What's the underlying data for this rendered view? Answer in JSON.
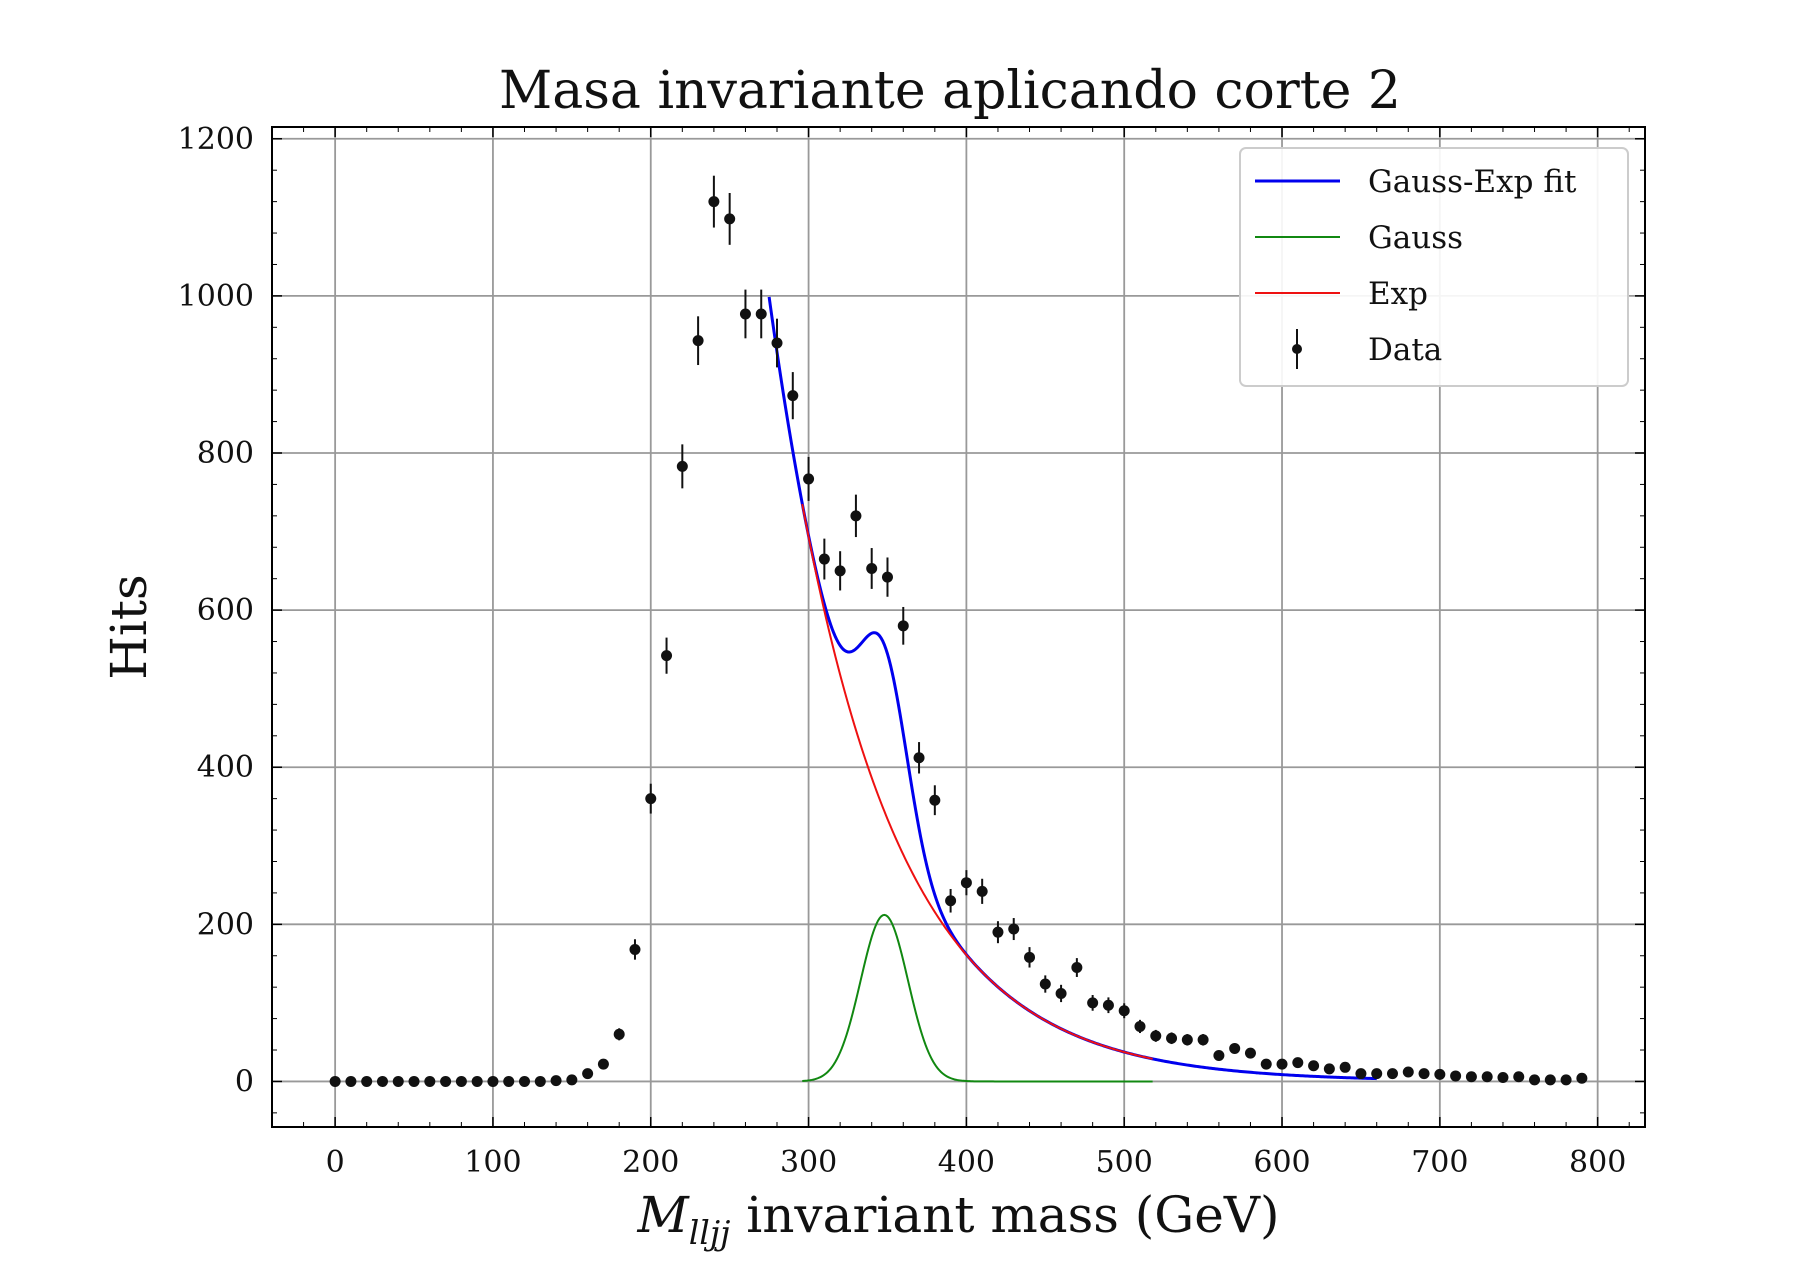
{
  "chart_data": {
    "type": "scatter",
    "title": "Masa invariante aplicando corte 2",
    "xlabel": {
      "symbol": "M",
      "subscript": "lljj",
      "rest": " invariant mass (GeV)"
    },
    "ylabel": "Hits",
    "xlim": [
      -40,
      830
    ],
    "ylim": [
      -58,
      1215
    ],
    "xticks": [
      0,
      100,
      200,
      300,
      400,
      500,
      600,
      700,
      800
    ],
    "yticks": [
      0,
      200,
      400,
      600,
      800,
      1000,
      1200
    ],
    "grid": true,
    "legend_position": "upper right",
    "colors": {
      "fit": "#0000ee",
      "gauss": "#118811",
      "exp": "#ee1111",
      "data": "#111111"
    },
    "legend": [
      "Gauss-Exp fit",
      "Gauss",
      "Exp",
      "Data"
    ],
    "data": {
      "x": [
        0,
        10,
        20,
        30,
        40,
        50,
        60,
        70,
        80,
        90,
        100,
        110,
        120,
        130,
        140,
        150,
        160,
        170,
        180,
        190,
        200,
        210,
        220,
        230,
        240,
        250,
        260,
        270,
        280,
        290,
        300,
        310,
        320,
        330,
        340,
        350,
        360,
        370,
        380,
        390,
        400,
        410,
        420,
        430,
        440,
        450,
        460,
        470,
        480,
        490,
        500,
        510,
        520,
        530,
        540,
        550,
        560,
        570,
        580,
        590,
        600,
        610,
        620,
        630,
        640,
        650,
        660,
        670,
        680,
        690,
        700,
        710,
        720,
        730,
        740,
        750,
        760,
        770,
        780,
        790
      ],
      "y": [
        0,
        0,
        0,
        0,
        0,
        0,
        0,
        0,
        0,
        0,
        0,
        0,
        0,
        0,
        1,
        2,
        10,
        22,
        60,
        168,
        360,
        542,
        783,
        943,
        1120,
        1098,
        977,
        977,
        940,
        873,
        767,
        665,
        650,
        720,
        653,
        642,
        580,
        412,
        358,
        230,
        253,
        242,
        190,
        194,
        158,
        124,
        112,
        145,
        100,
        97,
        90,
        70,
        58,
        55,
        53,
        53,
        33,
        42,
        36,
        22,
        22,
        24,
        20,
        16,
        18,
        10,
        10,
        10,
        12,
        10,
        9,
        7,
        6,
        6,
        5,
        6,
        2,
        2,
        2,
        4
      ],
      "yerr": [
        0,
        0,
        0,
        0,
        0,
        0,
        0,
        0,
        0,
        0,
        0,
        0,
        0,
        0,
        1,
        1.4,
        3.2,
        4.7,
        7.7,
        13,
        19,
        23,
        28,
        31,
        33,
        33,
        31,
        31,
        31,
        30,
        28,
        26,
        25,
        27,
        26,
        25,
        24,
        20,
        19,
        15,
        16,
        16,
        14,
        14,
        13,
        11,
        11,
        12,
        10,
        10,
        9.5,
        8.4,
        7.6,
        7.4,
        7.3,
        7.3,
        5.7,
        6.5,
        6,
        4.7,
        4.7,
        4.9,
        4.5,
        4,
        4.2,
        3.2,
        3.2,
        3.2,
        3.5,
        3.2,
        3,
        2.6,
        2.4,
        2.4,
        2.2,
        2.4,
        1.4,
        1.4,
        1.4,
        2
      ]
    },
    "fit": {
      "x_range": [
        275,
        660
      ],
      "exp_x_range": [
        296,
        518
      ],
      "gauss_x_range": [
        296,
        518
      ],
      "exp_amplitude": 735,
      "exp_decay": 68.5,
      "exp_x0": 296,
      "gauss_amplitude": 212,
      "gauss_mean": 348,
      "gauss_sigma": 15
    }
  }
}
